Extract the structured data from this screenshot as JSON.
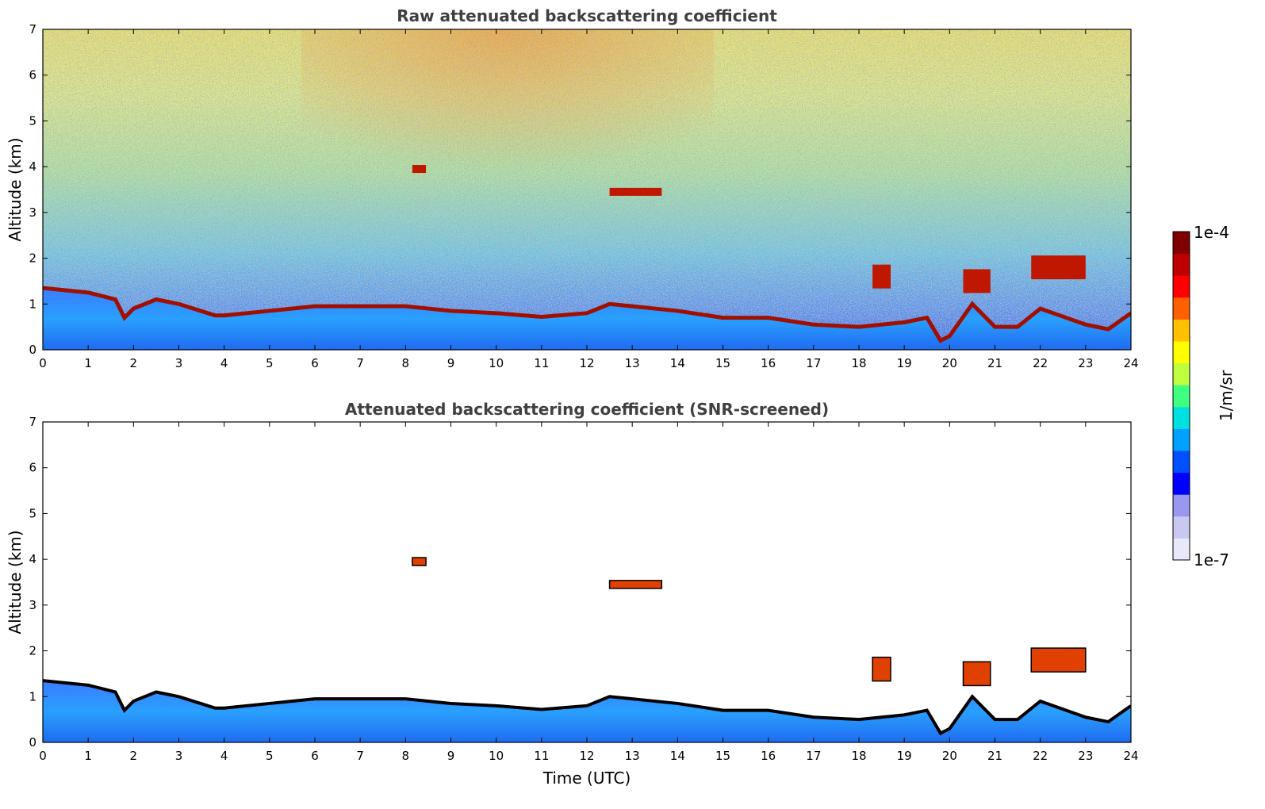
{
  "chart_data": [
    {
      "type": "heatmap",
      "title": "Raw attenuated backscattering coefficient",
      "xlabel": "",
      "ylabel": "Altitude (km)",
      "xlim": [
        0,
        24
      ],
      "ylim": [
        0,
        7
      ],
      "x_ticks": [
        0,
        1,
        2,
        3,
        4,
        5,
        6,
        7,
        8,
        9,
        10,
        11,
        12,
        13,
        14,
        15,
        16,
        17,
        18,
        19,
        20,
        21,
        22,
        23,
        24
      ],
      "y_ticks": [
        0,
        1,
        2,
        3,
        4,
        5,
        6,
        7
      ],
      "noise_visible": true,
      "boundary_layer_top_km": [
        [
          0,
          1.35
        ],
        [
          1,
          1.25
        ],
        [
          1.6,
          1.1
        ],
        [
          1.8,
          0.7
        ],
        [
          2,
          0.9
        ],
        [
          2.5,
          1.1
        ],
        [
          3.0,
          1.0
        ],
        [
          3.8,
          0.75
        ],
        [
          4,
          0.75
        ],
        [
          5,
          0.85
        ],
        [
          6,
          0.95
        ],
        [
          7,
          0.95
        ],
        [
          8,
          0.95
        ],
        [
          9,
          0.85
        ],
        [
          10,
          0.8
        ],
        [
          11,
          0.72
        ],
        [
          12,
          0.8
        ],
        [
          12.5,
          1.0
        ],
        [
          13,
          0.95
        ],
        [
          13.5,
          0.9
        ],
        [
          14,
          0.85
        ],
        [
          15,
          0.7
        ],
        [
          16,
          0.7
        ],
        [
          17,
          0.55
        ],
        [
          18,
          0.5
        ],
        [
          18.5,
          0.55
        ],
        [
          19,
          0.6
        ],
        [
          19.5,
          0.7
        ],
        [
          19.8,
          0.2
        ],
        [
          20,
          0.3
        ],
        [
          20.5,
          1.0
        ],
        [
          21,
          0.5
        ],
        [
          21.5,
          0.5
        ],
        [
          22,
          0.9
        ],
        [
          23,
          0.55
        ],
        [
          23.5,
          0.45
        ],
        [
          24,
          0.8
        ]
      ],
      "cloud_features": [
        {
          "label": "cloud",
          "t_start": 12.5,
          "t_end": 13.65,
          "alt_km": 3.45
        },
        {
          "label": "cloud",
          "t_start": 8.15,
          "t_end": 8.45,
          "alt_km": 3.95
        },
        {
          "label": "cloud",
          "t_start": 18.3,
          "t_end": 18.7,
          "alt_km": 1.6
        },
        {
          "label": "cloud",
          "t_start": 20.3,
          "t_end": 20.9,
          "alt_km": 1.5
        },
        {
          "label": "cloud",
          "t_start": 21.8,
          "t_end": 23.0,
          "alt_km": 1.8
        }
      ]
    },
    {
      "type": "heatmap",
      "title": "Attenuated backscattering coefficient (SNR-screened)",
      "xlabel": "Time (UTC)",
      "ylabel": "Altitude (km)",
      "xlim": [
        0,
        24
      ],
      "ylim": [
        0,
        7
      ],
      "x_ticks": [
        0,
        1,
        2,
        3,
        4,
        5,
        6,
        7,
        8,
        9,
        10,
        11,
        12,
        13,
        14,
        15,
        16,
        17,
        18,
        19,
        20,
        21,
        22,
        23,
        24
      ],
      "y_ticks": [
        0,
        1,
        2,
        3,
        4,
        5,
        6,
        7
      ],
      "noise_visible": false,
      "boundary_layer_marker_color": "#000000"
    }
  ],
  "colorbar": {
    "label": "1/m/sr",
    "min_label": "1e-7",
    "max_label": "1e-4",
    "scale": "log",
    "colors": [
      "#e8e8f8",
      "#c8c8f0",
      "#9898f0",
      "#0000ff",
      "#0050ff",
      "#00a0ff",
      "#00e0e0",
      "#40ff80",
      "#c0ff40",
      "#ffff00",
      "#ffc000",
      "#ff6000",
      "#ff0000",
      "#c00000",
      "#800000"
    ]
  }
}
